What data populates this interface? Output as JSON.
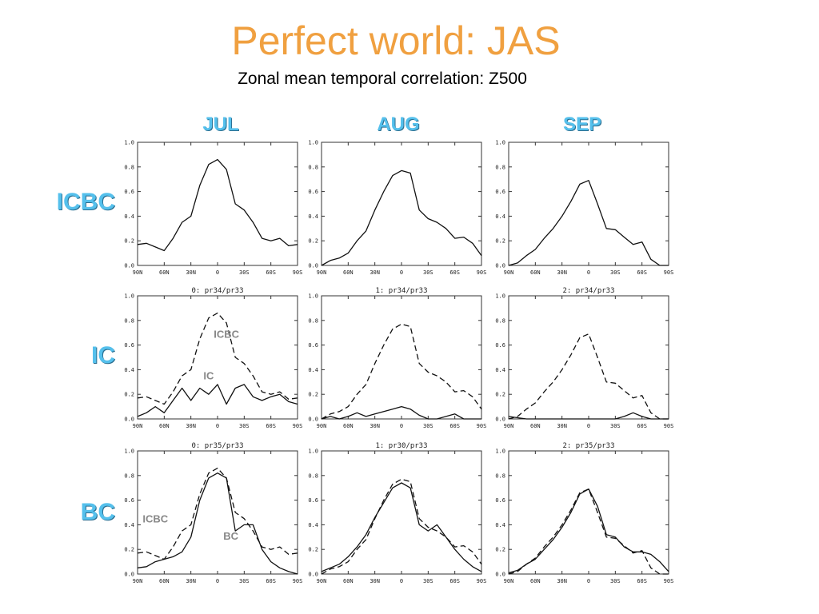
{
  "title": "Perfect world: JAS",
  "subtitle": "Zonal mean temporal correlation: Z500",
  "columns": [
    "JUL",
    "AUG",
    "SEP"
  ],
  "rows": [
    "ICBC",
    "IC",
    "BC"
  ],
  "chart_data": {
    "type": "line",
    "x_ticks": [
      "90N",
      "60N",
      "30N",
      "0",
      "30S",
      "60S",
      "90S"
    ],
    "x": [
      -90,
      -80,
      -70,
      -60,
      -50,
      -40,
      -30,
      -20,
      -10,
      0,
      10,
      20,
      30,
      40,
      50,
      60,
      70,
      80,
      90
    ],
    "y_ticks": [
      "0.0",
      "0.2",
      "0.4",
      "0.6",
      "0.8",
      "1.0"
    ],
    "ylim": [
      0,
      1
    ],
    "panels": [
      {
        "row": "ICBC",
        "col": "JUL",
        "panel_title": "",
        "series": [
          {
            "style": "solid",
            "values": [
              0.17,
              0.18,
              0.15,
              0.12,
              0.22,
              0.35,
              0.4,
              0.65,
              0.82,
              0.86,
              0.78,
              0.5,
              0.45,
              0.35,
              0.22,
              0.2,
              0.22,
              0.16,
              0.17
            ]
          }
        ]
      },
      {
        "row": "ICBC",
        "col": "AUG",
        "panel_title": "",
        "series": [
          {
            "style": "solid",
            "values": [
              0.0,
              0.04,
              0.06,
              0.1,
              0.2,
              0.28,
              0.45,
              0.6,
              0.73,
              0.77,
              0.75,
              0.45,
              0.38,
              0.35,
              0.3,
              0.22,
              0.23,
              0.18,
              0.08
            ]
          }
        ]
      },
      {
        "row": "ICBC",
        "col": "SEP",
        "panel_title": "",
        "series": [
          {
            "style": "solid",
            "values": [
              -0.02,
              0.02,
              0.08,
              0.13,
              0.22,
              0.3,
              0.4,
              0.52,
              0.66,
              0.69,
              0.5,
              0.3,
              0.29,
              0.23,
              0.17,
              0.19,
              0.05,
              0.0,
              -0.02
            ]
          }
        ]
      },
      {
        "row": "IC",
        "col": "JUL",
        "panel_title": "0: pr34/pr33",
        "series": [
          {
            "name": "ICBC",
            "style": "dashed",
            "values": [
              0.17,
              0.18,
              0.15,
              0.12,
              0.22,
              0.35,
              0.4,
              0.65,
              0.82,
              0.86,
              0.78,
              0.5,
              0.45,
              0.35,
              0.22,
              0.2,
              0.22,
              0.16,
              0.17
            ]
          },
          {
            "name": "IC",
            "style": "solid",
            "values": [
              0.02,
              0.05,
              0.1,
              0.05,
              0.15,
              0.25,
              0.15,
              0.25,
              0.2,
              0.28,
              0.12,
              0.25,
              0.28,
              0.18,
              0.15,
              0.18,
              0.2,
              0.14,
              0.12
            ]
          }
        ]
      },
      {
        "row": "IC",
        "col": "AUG",
        "panel_title": "1: pr34/pr33",
        "series": [
          {
            "style": "dashed",
            "values": [
              0.0,
              0.04,
              0.06,
              0.1,
              0.2,
              0.28,
              0.45,
              0.6,
              0.73,
              0.77,
              0.75,
              0.45,
              0.38,
              0.35,
              0.3,
              0.22,
              0.23,
              0.18,
              0.08
            ]
          },
          {
            "style": "solid",
            "values": [
              0.0,
              0.02,
              0.0,
              0.02,
              0.05,
              0.02,
              0.04,
              0.06,
              0.08,
              0.1,
              0.08,
              0.03,
              0.0,
              0.0,
              0.02,
              0.04,
              0.0,
              0.0,
              0.0
            ]
          }
        ]
      },
      {
        "row": "IC",
        "col": "SEP",
        "panel_title": "2: pr34/pr33",
        "series": [
          {
            "style": "dashed",
            "values": [
              -0.02,
              0.02,
              0.08,
              0.13,
              0.22,
              0.3,
              0.4,
              0.52,
              0.66,
              0.69,
              0.5,
              0.3,
              0.29,
              0.23,
              0.17,
              0.19,
              0.05,
              0.0,
              -0.02
            ]
          },
          {
            "style": "solid",
            "values": [
              0.02,
              0.01,
              0.0,
              0.0,
              0.0,
              0.0,
              0.0,
              0.0,
              0.0,
              0.0,
              0.0,
              0.0,
              0.0,
              0.02,
              0.05,
              0.02,
              0.0,
              0.0,
              0.0
            ]
          }
        ]
      },
      {
        "row": "BC",
        "col": "JUL",
        "panel_title": "0: pr35/pr33",
        "series": [
          {
            "name": "ICBC",
            "style": "dashed",
            "values": [
              0.17,
              0.18,
              0.15,
              0.12,
              0.22,
              0.35,
              0.4,
              0.65,
              0.82,
              0.86,
              0.78,
              0.5,
              0.45,
              0.35,
              0.22,
              0.2,
              0.22,
              0.16,
              0.17
            ]
          },
          {
            "name": "BC",
            "style": "solid",
            "values": [
              0.05,
              0.06,
              0.1,
              0.12,
              0.14,
              0.18,
              0.3,
              0.6,
              0.78,
              0.82,
              0.78,
              0.35,
              0.4,
              0.4,
              0.2,
              0.1,
              0.05,
              0.02,
              -0.05
            ]
          }
        ]
      },
      {
        "row": "BC",
        "col": "AUG",
        "panel_title": "1: pr30/pr33",
        "series": [
          {
            "style": "dashed",
            "values": [
              0.0,
              0.04,
              0.06,
              0.1,
              0.2,
              0.28,
              0.45,
              0.6,
              0.73,
              0.77,
              0.75,
              0.45,
              0.38,
              0.35,
              0.3,
              0.22,
              0.23,
              0.18,
              0.08
            ]
          },
          {
            "style": "solid",
            "values": [
              0.02,
              0.05,
              0.08,
              0.14,
              0.22,
              0.32,
              0.46,
              0.58,
              0.7,
              0.74,
              0.7,
              0.4,
              0.35,
              0.4,
              0.3,
              0.2,
              0.12,
              0.06,
              0.02
            ]
          }
        ]
      },
      {
        "row": "BC",
        "col": "SEP",
        "panel_title": "2: pr35/pr33",
        "series": [
          {
            "style": "dashed",
            "values": [
              -0.02,
              0.02,
              0.08,
              0.13,
              0.22,
              0.3,
              0.4,
              0.52,
              0.66,
              0.69,
              0.5,
              0.3,
              0.29,
              0.23,
              0.17,
              0.19,
              0.05,
              0.0,
              -0.02
            ]
          },
          {
            "style": "solid",
            "values": [
              0.01,
              0.03,
              0.08,
              0.12,
              0.2,
              0.28,
              0.38,
              0.5,
              0.65,
              0.69,
              0.55,
              0.32,
              0.3,
              0.22,
              0.18,
              0.18,
              0.16,
              0.1,
              0.02
            ]
          }
        ]
      }
    ],
    "annotations": [
      {
        "panel": 3,
        "text": "ICBC",
        "at": [
          10,
          0.66
        ]
      },
      {
        "panel": 3,
        "text": "IC",
        "at": [
          -10,
          0.32
        ]
      },
      {
        "panel": 6,
        "text": "ICBC",
        "at": [
          -70,
          0.42
        ]
      },
      {
        "panel": 6,
        "text": "BC",
        "at": [
          15,
          0.28
        ]
      }
    ]
  }
}
